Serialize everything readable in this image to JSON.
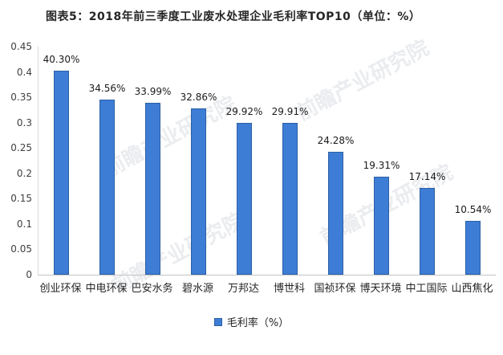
{
  "title": "图表5：2018年前三季度工业废水处理企业毛利率TOP10（单位：%）",
  "watermark": "前瞻产业研究院",
  "colors": {
    "bar_fill": "#3E7DD5",
    "bar_border": "#2B5FA5",
    "title_text": "#262626",
    "axis_line": "#C3C3C3"
  },
  "legend": {
    "label": "毛利率（%）"
  },
  "chart_data": {
    "type": "bar",
    "title": "图表5：2018年前三季度工业废水处理企业毛利率TOP10（单位：%）",
    "categories": [
      "创业环保",
      "中电环保",
      "巴安水务",
      "碧水源",
      "万邦达",
      "博世科",
      "国祯环保",
      "博天环境",
      "中工国际",
      "山西焦化"
    ],
    "values": [
      0.403,
      0.3456,
      0.3399,
      0.3286,
      0.2992,
      0.2991,
      0.2428,
      0.1931,
      0.1714,
      0.1054
    ],
    "data_labels": [
      "40.30%",
      "34.56%",
      "33.99%",
      "32.86%",
      "29.92%",
      "29.91%",
      "24.28%",
      "19.31%",
      "17.14%",
      "10.54%"
    ],
    "legend_entries": [
      "毛利率（%）"
    ],
    "legend_position": "bottom",
    "xlabel": "",
    "ylabel": "",
    "ylim": [
      0,
      0.45
    ],
    "ytick_step": 0.05,
    "yticks": [
      "0",
      "0.05",
      "0.1",
      "0.15",
      "0.2",
      "0.25",
      "0.3",
      "0.35",
      "0.4",
      "0.45"
    ],
    "grid": false,
    "unit": "%"
  }
}
